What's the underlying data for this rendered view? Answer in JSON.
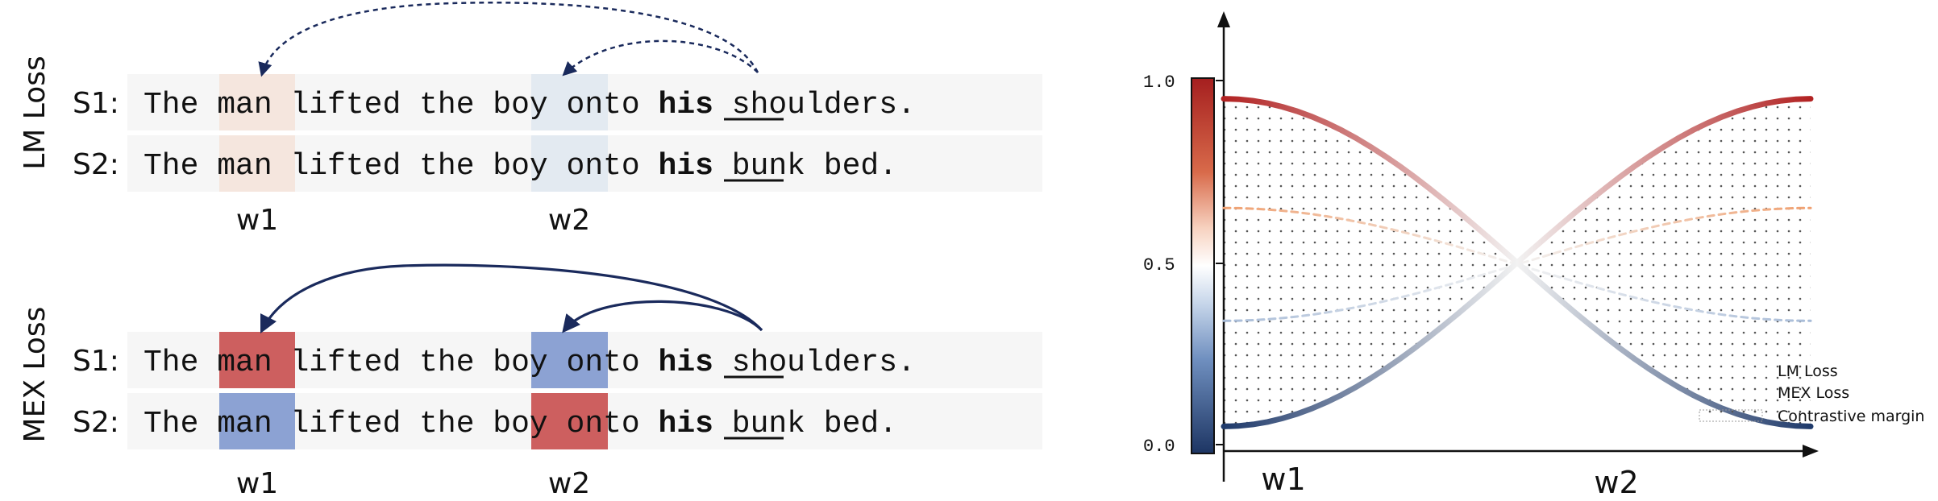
{
  "left": {
    "lm_title": "LM Loss",
    "mex_title": "MEX Loss",
    "s1_label": "S1:",
    "s2_label": "S2:",
    "s1_tokens": [
      "The",
      "man",
      "lifted",
      "the",
      "boy",
      "onto",
      "his",
      "shoulders."
    ],
    "s2_tokens": [
      "The",
      "man",
      "lifted",
      "the",
      "boy",
      "onto",
      "his",
      "bunk",
      "bed."
    ],
    "w1_label": "w1",
    "w2_label": "w2",
    "colors": {
      "row_bg": "#f6f6f6",
      "lm_w1_bg": "#f5e6de",
      "lm_w2_bg": "#e3eaf1",
      "mex_red": "#cd5f5f",
      "mex_blue": "#8ca2d3",
      "arrow": "#1a2a5c"
    }
  },
  "chart_data": {
    "type": "line",
    "x_labels": [
      "w1",
      "w2"
    ],
    "y_ticks": [
      "0.0",
      "0.5",
      "1.0"
    ],
    "ylim": [
      0,
      1
    ],
    "colorbar": true,
    "legend_position": "right",
    "legend": [
      {
        "label": "LM Loss",
        "style": "dashed-gradient"
      },
      {
        "label": "MEX Loss",
        "style": "solid-gradient"
      },
      {
        "label": "Contrastive margin",
        "style": "dotted-fill"
      }
    ],
    "series": [
      {
        "style": "MEX",
        "color_at_start": "#b22222",
        "points": [
          [
            0,
            0.95
          ],
          [
            0.5,
            0.5
          ],
          [
            1,
            0.05
          ]
        ]
      },
      {
        "style": "MEX",
        "color_at_start": "#1f3a6b",
        "points": [
          [
            0,
            0.05
          ],
          [
            0.5,
            0.5
          ],
          [
            1,
            0.95
          ]
        ]
      },
      {
        "style": "LM",
        "color_at_start": "#f0a070",
        "points": [
          [
            0,
            0.65
          ],
          [
            0.5,
            0.5
          ],
          [
            1,
            0.34
          ]
        ]
      },
      {
        "style": "LM",
        "color_at_start": "#a8bcd8",
        "points": [
          [
            0,
            0.34
          ],
          [
            0.5,
            0.5
          ],
          [
            1,
            0.65
          ]
        ]
      }
    ]
  }
}
